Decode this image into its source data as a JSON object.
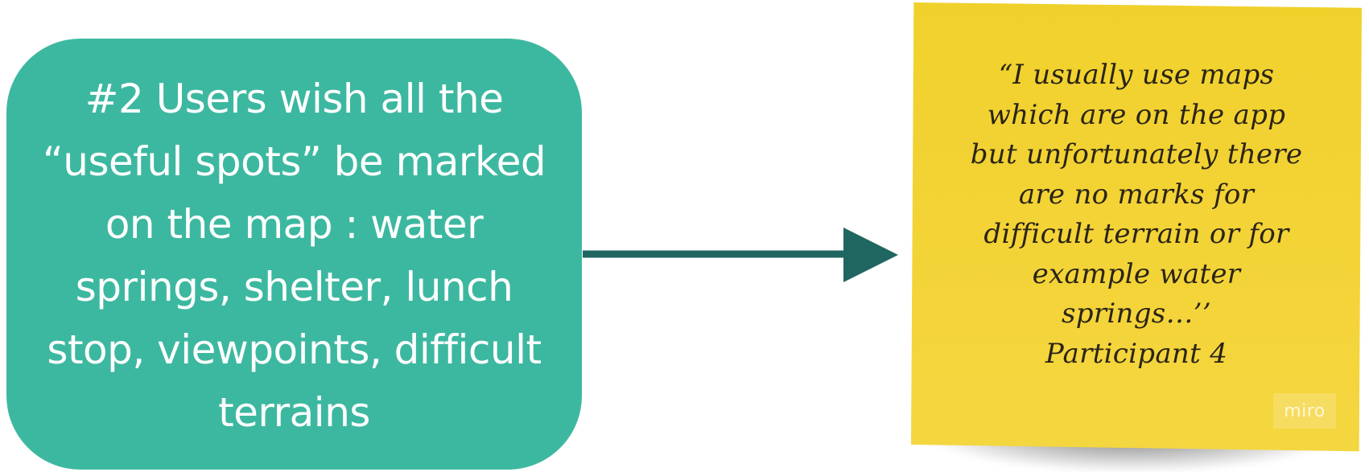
{
  "insight": {
    "text": "#2 Users wish all the\n“useful spots” be marked\non the map : water\nsprings, shelter, lunch\nstop, viewpoints, difficult\nterrains"
  },
  "sticky_note": {
    "quote": "“I usually use maps\nwhich are on the app\nbut unfortunately there\nare no marks for\ndifficult terrain or for\nexample water\nsprings…’’\nParticipant 4",
    "watermark": "miro"
  },
  "colors": {
    "insight_background": "#3db8a0",
    "connector": "#1f6660",
    "sticky_note": "#f3d335"
  }
}
